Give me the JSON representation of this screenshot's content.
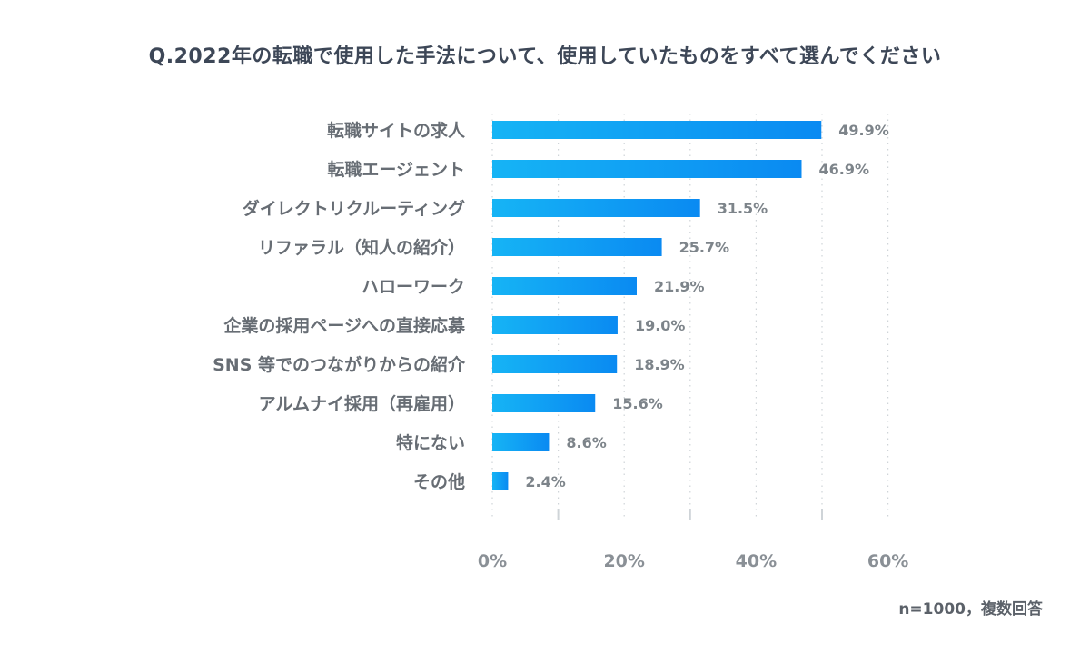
{
  "title": "Q.2022年の転職で使用した手法について、使用していたものをすべて選んでください",
  "note": "n=1000，複数回答",
  "colors": {
    "bar_start": "#16b4f5",
    "bar_end": "#0a8af2",
    "grid": "#cfd4d8"
  },
  "chart_data": {
    "type": "bar",
    "orientation": "horizontal",
    "title": "Q.2022年の転職で使用した手法について、使用していたものをすべて選んでください",
    "categories": [
      "転職サイトの求人",
      "転職エージェント",
      "ダイレクトリクルーティング",
      "リファラル（知人の紹介）",
      "ハローワーク",
      "企業の採用ページへの直接応募",
      "SNS 等でのつながりからの紹介",
      "アルムナイ採用（再雇用）",
      "特にない",
      "その他"
    ],
    "values": [
      49.9,
      46.9,
      31.5,
      25.7,
      21.9,
      19.0,
      18.9,
      15.6,
      8.6,
      2.4
    ],
    "value_labels": [
      "49.9%",
      "46.9%",
      "31.5%",
      "25.7%",
      "21.9%",
      "19.0%",
      "18.9%",
      "15.6%",
      "8.6%",
      "2.4%"
    ],
    "xlim": [
      0,
      60
    ],
    "ticks": [
      0,
      20,
      40,
      60
    ],
    "tick_labels": [
      "0%",
      "20%",
      "40%",
      "60%"
    ],
    "grid": true
  }
}
